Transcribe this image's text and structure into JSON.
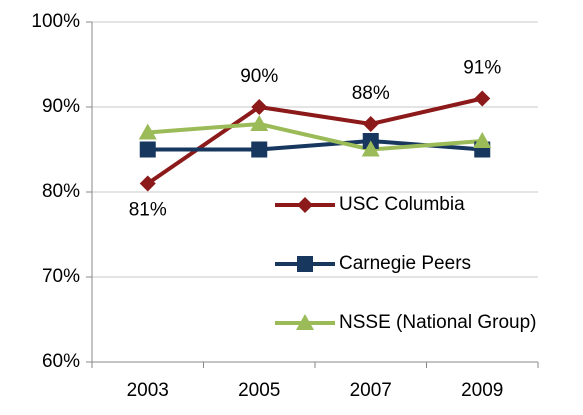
{
  "chart_data": {
    "type": "line",
    "categories": [
      "2003",
      "2005",
      "2007",
      "2009"
    ],
    "series": [
      {
        "name": "USC Columbia",
        "color": "#8c1a1a",
        "marker": "diamond",
        "values": [
          81,
          90,
          88,
          91
        ],
        "value_labels": [
          "81%",
          "90%",
          "88%",
          "91%"
        ]
      },
      {
        "name": "Carnegie Peers",
        "color": "#17375e",
        "marker": "square",
        "values": [
          85,
          85,
          86,
          85
        ]
      },
      {
        "name": "NSSE (National Group)",
        "color": "#9bbb59",
        "marker": "triangle",
        "values": [
          87,
          88,
          85,
          86
        ]
      }
    ],
    "ylim": [
      60,
      100
    ],
    "yticks": [
      {
        "value": 60,
        "label": "60%"
      },
      {
        "value": 70,
        "label": "70%"
      },
      {
        "value": 80,
        "label": "80%"
      },
      {
        "value": 90,
        "label": "90%"
      },
      {
        "value": 100,
        "label": "100%"
      }
    ],
    "grid": true,
    "legend": "right"
  }
}
